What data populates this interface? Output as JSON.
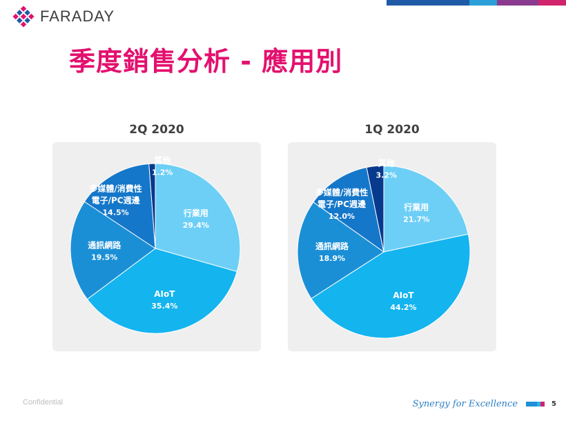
{
  "header": {
    "logo_text": "FARADAY",
    "title": "季度銷售分析 - 應用別"
  },
  "colors": {
    "title": "#e3106e",
    "band": [
      "#1f5aa6",
      "#2a9fd8",
      "#8a3b8f",
      "#d0246c"
    ],
    "slices": {
      "行業用": "#6dcff6",
      "AIoT": "#14b4ef",
      "通訊網路": "#1b8fd6",
      "電子/PC週邊": "#1577c9",
      "多媒體/消費性": "#0f5fb8",
      "其他": "#073a8c"
    }
  },
  "chart_data": [
    {
      "type": "pie",
      "title": "2Q 2020",
      "slices": [
        {
          "label": "行業用",
          "value": 29.4,
          "value_text": "29.4%"
        },
        {
          "label": "AIoT",
          "value": 35.4,
          "value_text": "35.4%"
        },
        {
          "label": "通訊網路",
          "value": 19.5,
          "value_text": "19.5%"
        },
        {
          "label": "多媒體/消費性\n電子/PC週邊",
          "value": 14.5,
          "value_text": "14.5%"
        },
        {
          "label": "其他",
          "value": 1.2,
          "value_text": "1.2%"
        }
      ]
    },
    {
      "type": "pie",
      "title": "1Q 2020",
      "slices": [
        {
          "label": "行業用",
          "value": 21.7,
          "value_text": "21.7%"
        },
        {
          "label": "AIoT",
          "value": 44.2,
          "value_text": "44.2%"
        },
        {
          "label": "通訊網路",
          "value": 18.9,
          "value_text": "18.9%"
        },
        {
          "label": "多媒體/消費性\n電子/PC週邊",
          "value": 12.0,
          "value_text": "12.0%"
        },
        {
          "label": "其他",
          "value": 3.2,
          "value_text": "3.2%"
        }
      ]
    }
  ],
  "footer": {
    "confidential": "Confidential",
    "slogan": "Synergy for Excellence",
    "page_number": "5"
  }
}
